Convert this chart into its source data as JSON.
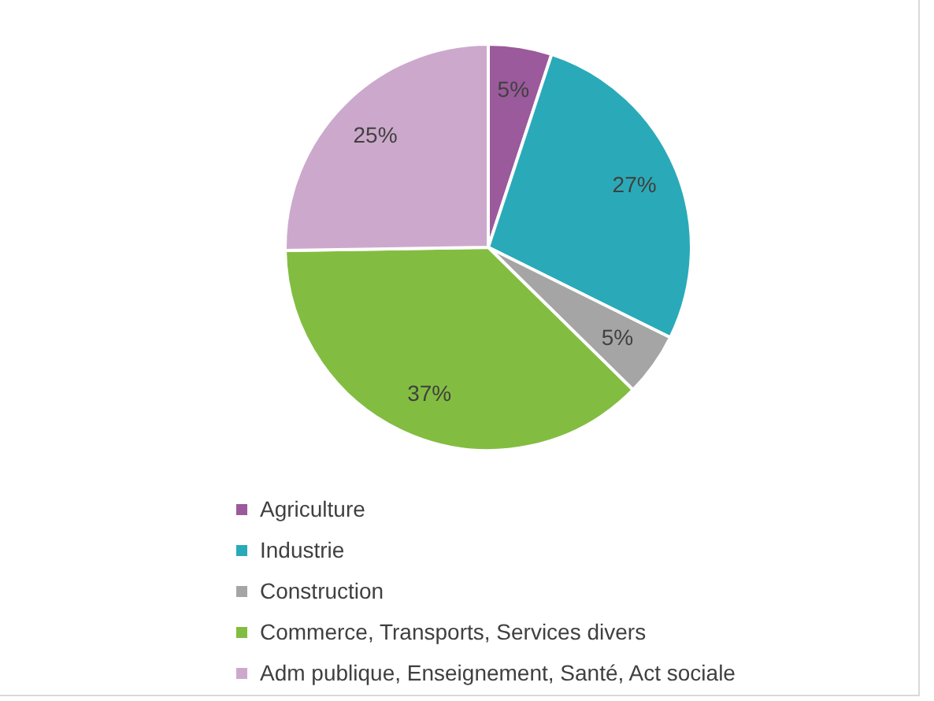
{
  "chart_data": {
    "type": "pie",
    "categories": [
      "Agriculture",
      "Industrie",
      "Construction",
      "Commerce, Transports, Services divers",
      "Adm publique, Enseignement, Santé, Act sociale"
    ],
    "values": [
      5,
      27,
      5,
      37,
      25
    ],
    "colors": [
      "#9b5a9b",
      "#2aaab8",
      "#a5a5a5",
      "#82bd41",
      "#cca9cc"
    ],
    "value_labels": [
      "5%",
      "27%",
      "5%",
      "37%",
      "25%"
    ],
    "legend": "bottom"
  }
}
